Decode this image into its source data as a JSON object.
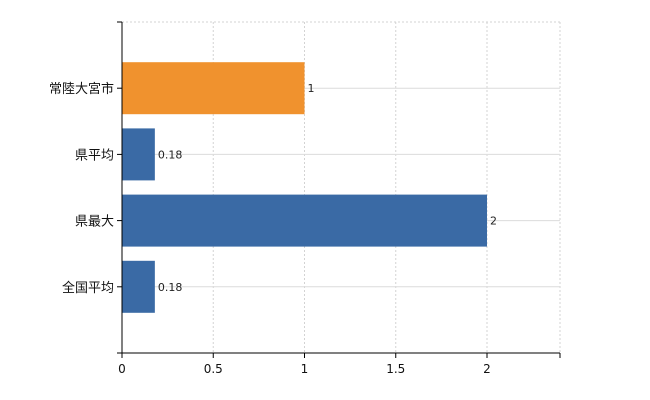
{
  "chart_data": {
    "type": "bar",
    "orientation": "horizontal",
    "categories": [
      "常陸大宮市",
      "県平均",
      "県最大",
      "全国平均"
    ],
    "values": [
      1,
      0.18,
      2,
      0.18
    ],
    "value_labels": [
      "1",
      "0.18",
      "2",
      "0.18"
    ],
    "bar_colors": [
      "#f0922e",
      "#3a6aa5",
      "#3a6aa5",
      "#3a6aa5"
    ],
    "xlim": [
      0,
      2.4
    ],
    "xticks": [
      0,
      0.5,
      1,
      1.5,
      2
    ],
    "xtick_labels": [
      "0",
      "0.5",
      "1",
      "1.5",
      "2"
    ],
    "grid": true,
    "title": "",
    "xlabel": "",
    "ylabel": ""
  }
}
